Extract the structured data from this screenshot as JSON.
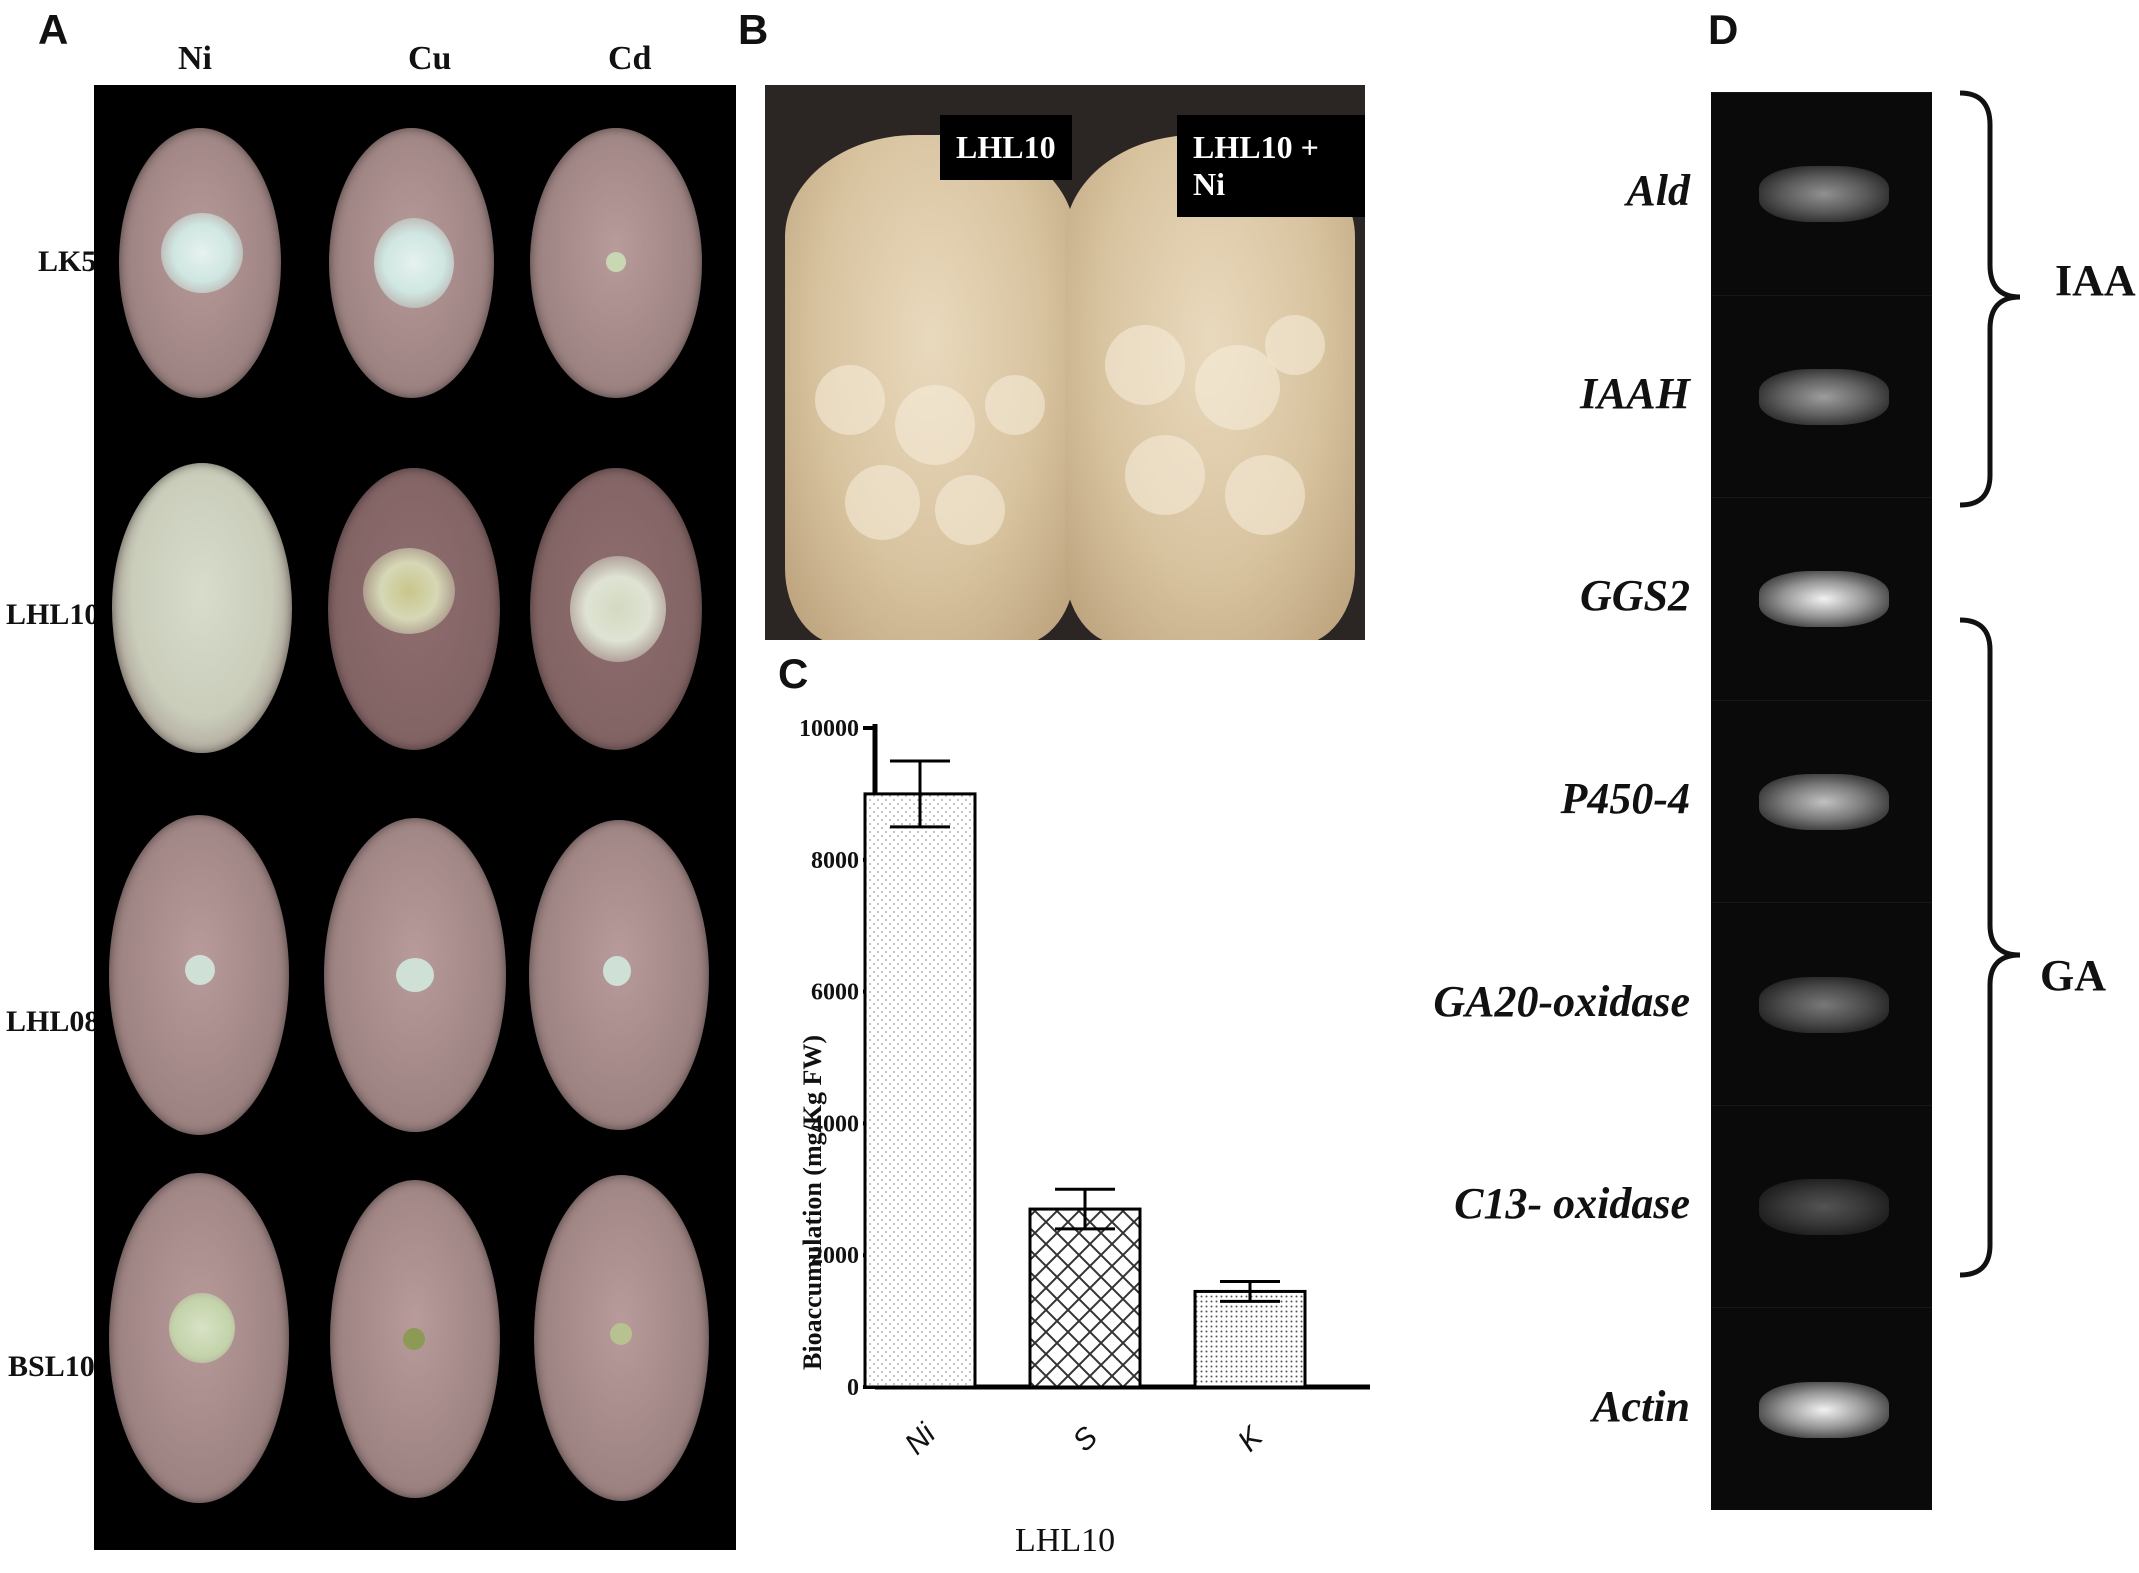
{
  "panels": {
    "a": {
      "letter": "A",
      "columns": [
        "Ni",
        "Cu",
        "Cd"
      ],
      "rows": [
        "LK5",
        "LHL10",
        "LHL08",
        "BSL10"
      ]
    },
    "b": {
      "letter": "B",
      "flasks": [
        "LHL10",
        "LHL10 + Ni"
      ]
    },
    "c": {
      "letter": "C",
      "ylabel": "Bioaccumulation (mg/Kg FW)",
      "xtitle": "LHL10"
    },
    "d": {
      "letter": "D",
      "genes": [
        "Ald",
        "IAAH",
        "GGS2",
        "P450-4",
        "GA20-oxidase",
        "C13- oxidase",
        "Actin"
      ],
      "band_intensity": [
        0.55,
        0.6,
        0.95,
        0.75,
        0.45,
        0.3,
        0.95
      ],
      "groups": [
        "IAA",
        "GA"
      ]
    }
  },
  "chart_data": {
    "type": "bar",
    "categories": [
      "Ni",
      "S",
      "K"
    ],
    "values": [
      9000,
      2700,
      1450
    ],
    "errors": [
      500,
      300,
      150
    ],
    "patterns": [
      "dots",
      "crosshatch",
      "fine-dots"
    ],
    "ylim": [
      0,
      10000
    ],
    "yticks": [
      0,
      2000,
      4000,
      6000,
      8000,
      10000
    ],
    "xlabel": "LHL10",
    "ylabel": "Bioaccumulation (mg/Kg FW)"
  }
}
